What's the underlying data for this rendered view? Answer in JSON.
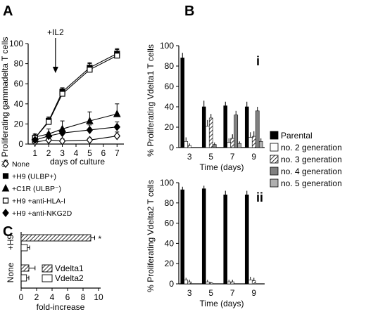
{
  "panel_letters": {
    "A": "A",
    "B": "B",
    "C": "C"
  },
  "legend_A": [
    {
      "marker": "open-diamond",
      "label": "None"
    },
    {
      "marker": "filled-square",
      "label": "+H9 (ULBP+)"
    },
    {
      "marker": "filled-triangle",
      "label": "+C1R (ULBP⁻)"
    },
    {
      "marker": "open-square",
      "label": "+H9 +anti-HLA-I"
    },
    {
      "marker": "filled-diamond",
      "label": "+H9 +anti-NKG2D"
    }
  ],
  "legend_B": [
    {
      "fill": "#000000",
      "pattern": "solid",
      "label": "Parental"
    },
    {
      "fill": "#ffffff",
      "pattern": "solid",
      "label": "no. 2 generation"
    },
    {
      "fill": "#ffffff",
      "pattern": "hatch",
      "label": "no. 3 generation"
    },
    {
      "fill": "#808080",
      "pattern": "solid",
      "label": "no. 4 generation"
    },
    {
      "fill": "#b0b0b0",
      "pattern": "solid",
      "label": "no. 5 generation"
    }
  ],
  "legend_C": [
    {
      "pattern": "hatch",
      "label": "Vdelta1"
    },
    {
      "pattern": "open",
      "label": "Vdelta2"
    }
  ],
  "chart_data": [
    {
      "panel": "A",
      "type": "line",
      "ylabel": "% Proliferating gammadelta T cells",
      "xlabel": "days of culture",
      "annotation": "+IL2",
      "annotation_x": 2.5,
      "x": [
        1,
        2,
        3,
        4,
        5,
        6,
        7
      ],
      "xlim": [
        0.5,
        7.5
      ],
      "ylim": [
        0,
        100
      ],
      "yticks": [
        0,
        20,
        40,
        60,
        80,
        100
      ],
      "series": [
        {
          "marker": "open-diamond",
          "x": [
            1,
            2,
            3,
            5,
            7
          ],
          "values": [
            2,
            4,
            3,
            4,
            8
          ],
          "err": [
            1,
            2,
            2,
            2,
            4
          ]
        },
        {
          "marker": "filled-square",
          "x": [
            1,
            2,
            3,
            5,
            7
          ],
          "values": [
            6,
            23,
            52,
            76,
            90
          ],
          "err": [
            3,
            4,
            4,
            5,
            5
          ]
        },
        {
          "marker": "filled-triangle",
          "x": [
            1,
            2,
            3,
            5,
            7
          ],
          "values": [
            7,
            10,
            15,
            23,
            30
          ],
          "err": [
            3,
            5,
            8,
            9,
            10
          ]
        },
        {
          "marker": "open-square",
          "x": [
            1,
            2,
            3,
            5,
            7
          ],
          "values": [
            6,
            22,
            50,
            74,
            88
          ],
          "err": [
            3,
            4,
            5,
            6,
            6
          ]
        },
        {
          "marker": "filled-diamond",
          "x": [
            1,
            2,
            3,
            5,
            7
          ],
          "values": [
            4,
            8,
            11,
            14,
            17
          ],
          "err": [
            2,
            3,
            4,
            5,
            5
          ]
        }
      ]
    },
    {
      "panel": "B-i",
      "roman": "i",
      "type": "bar",
      "ylabel": "% Proliferating Vdelta1 T cells",
      "xlabel": "Time (days)",
      "categories": [
        "3",
        "5",
        "7",
        "9"
      ],
      "ylim": [
        0,
        100
      ],
      "yticks": [
        0,
        20,
        40,
        60,
        80,
        100
      ],
      "series": [
        {
          "name": "Parental",
          "values": [
            88,
            40,
            41,
            40
          ],
          "err": [
            5,
            6,
            4,
            5
          ]
        },
        {
          "name": "no. 2 generation",
          "values": [
            6,
            21,
            5,
            10
          ],
          "err": [
            4,
            6,
            4,
            5
          ]
        },
        {
          "name": "no. 3 generation",
          "values": [
            2,
            29,
            9,
            11
          ],
          "err": [
            2,
            4,
            4,
            5
          ]
        },
        {
          "name": "no. 4 generation",
          "values": [
            0,
            3,
            32,
            36
          ],
          "err": [
            0,
            2,
            4,
            4
          ]
        },
        {
          "name": "no. 5 generation",
          "values": [
            0,
            0,
            4,
            6
          ],
          "err": [
            0,
            0,
            2,
            3
          ]
        }
      ]
    },
    {
      "panel": "B-ii",
      "roman": "ii",
      "type": "bar",
      "ylabel": "% Proliferating Vdelta2 T cells",
      "xlabel": "Time (days)",
      "categories": [
        "3",
        "5",
        "7",
        "9"
      ],
      "ylim": [
        0,
        100
      ],
      "yticks": [
        0,
        20,
        40,
        60,
        80,
        100
      ],
      "series": [
        {
          "name": "Parental",
          "values": [
            93,
            94,
            88,
            88
          ],
          "err": [
            3,
            3,
            4,
            4
          ]
        },
        {
          "name": "no. 2 generation",
          "values": [
            4,
            2,
            2,
            4
          ],
          "err": [
            2,
            2,
            2,
            3
          ]
        },
        {
          "name": "no. 3 generation",
          "values": [
            2,
            1,
            2,
            3
          ],
          "err": [
            2,
            1,
            2,
            3
          ]
        },
        {
          "name": "no. 4 generation",
          "values": [
            0,
            0,
            0,
            0
          ],
          "err": [
            0,
            0,
            0,
            0
          ]
        },
        {
          "name": "no. 5 generation",
          "values": [
            0,
            0,
            0,
            0
          ],
          "err": [
            0,
            0,
            0,
            0
          ]
        }
      ]
    },
    {
      "panel": "C",
      "type": "bar",
      "orientation": "horizontal",
      "xlabel": "fold-increase",
      "xlim": [
        0,
        10
      ],
      "xticks": [
        0,
        2,
        4,
        6,
        8,
        10
      ],
      "groups": [
        "+H9",
        "None"
      ],
      "series": [
        {
          "name": "Vdelta1",
          "values": [
            9.0,
            1.0
          ],
          "err": [
            0.5,
            0.8
          ]
        },
        {
          "name": "Vdelta2",
          "values": [
            0.8,
            0.7
          ],
          "err": [
            0.3,
            0.3
          ]
        }
      ],
      "annotation": "*"
    }
  ]
}
